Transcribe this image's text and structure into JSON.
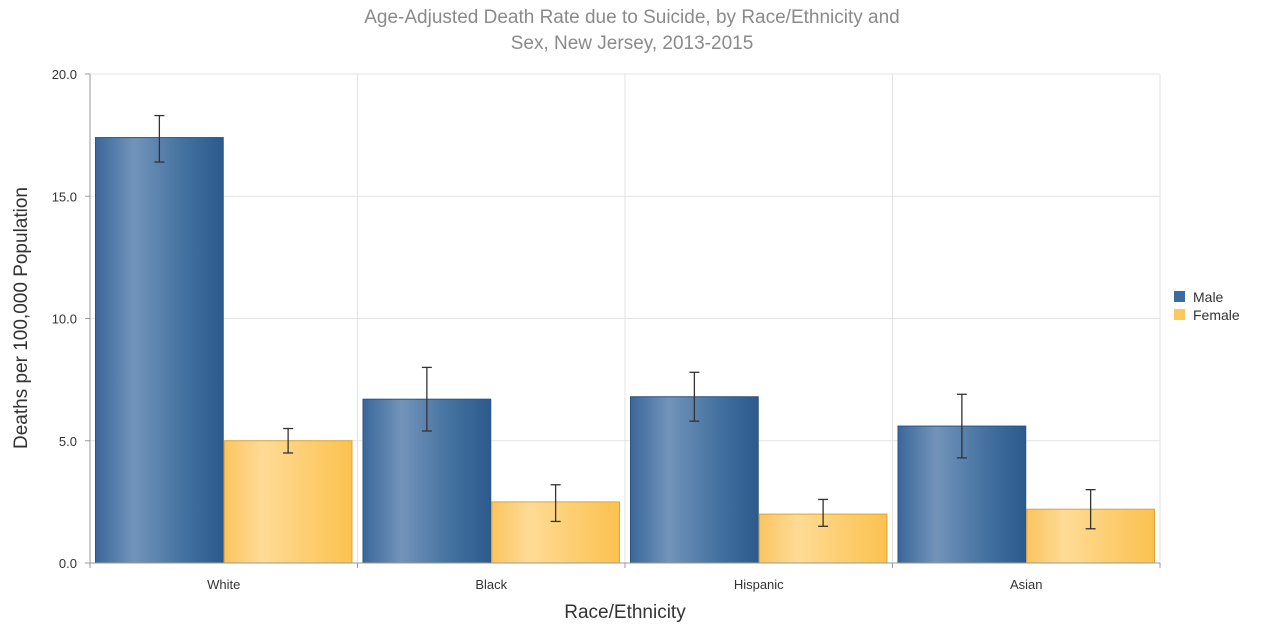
{
  "chart_data": {
    "type": "bar",
    "title": "Age-Adjusted Death Rate due to Suicide, by Race/Ethnicity and",
    "subtitle": "Sex, New Jersey, 2013-2015",
    "xlabel": "Race/Ethnicity",
    "ylabel": "Deaths per 100,000 Population",
    "categories": [
      "White",
      "Black",
      "Hispanic",
      "Asian"
    ],
    "ylim": [
      0,
      20
    ],
    "yticks": [
      "0.0",
      "5.0",
      "10.0",
      "15.0",
      "20.0"
    ],
    "grid": true,
    "legend_position": "right",
    "series": [
      {
        "name": "Male",
        "color": "#3a6a9e",
        "values": [
          17.4,
          6.7,
          6.8,
          5.6
        ],
        "error_low": [
          16.4,
          5.4,
          5.8,
          4.3
        ],
        "error_high": [
          18.3,
          8.0,
          7.8,
          6.9
        ]
      },
      {
        "name": "Female",
        "color": "#fdc75c",
        "values": [
          5.0,
          2.5,
          2.0,
          2.2
        ],
        "error_low": [
          4.5,
          1.7,
          1.5,
          1.4
        ],
        "error_high": [
          5.5,
          3.2,
          2.6,
          3.0
        ]
      }
    ]
  }
}
